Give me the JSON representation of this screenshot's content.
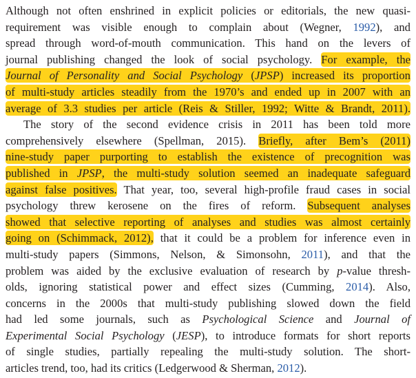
{
  "lines": [
    [
      "Although not often enshrined in explicit policies or editorials, the new quasi-"
    ],
    [
      "requirement was visible enough to complain about (Wegner, ",
      "1992",
      "), and"
    ],
    [
      "spread through word-of-mouth communication. This hand on the levers of"
    ],
    [
      "journal publishing changed the look of social psychology. ",
      "For example, the"
    ],
    [
      "Journal of Personality and Social Psychology",
      " (",
      "JPSP",
      ") increased its proportion"
    ],
    [
      "of multi-study articles steadily from the 1970’s and ended up in 2007 with an"
    ],
    [
      "average of 3.3 studies per article (Reis & Stiller, 1992; Witte & Brandt, 2011)."
    ],
    [
      "The story of the second evidence crisis in 2011 has been told more"
    ],
    [
      "comprehensively elsewhere (Spellman, 2015). ",
      "Briefly, after Bem’s (2011)"
    ],
    [
      "nine-study paper purporting to establish the existence of precognition was"
    ],
    [
      "published in ",
      "JPSP",
      ", the multi-study solution seemed an inadequate safeguard"
    ],
    [
      "against false positives.",
      " That year, too, several high-profile fraud cases in social"
    ],
    [
      "psychology threw kerosene on the fires of reform. ",
      "Subsequent analyses"
    ],
    [
      "showed that selective reporting of analyses and studies was almost certainly"
    ],
    [
      "going on (Schimmack, 2012),",
      " that it could be a problem for inference even in"
    ],
    [
      "multi-study papers (Simmons, Nelson, & Simonsohn, ",
      "2011",
      "), and that the"
    ],
    [
      "problem was aided by the exclusive evaluation of research by ",
      "p",
      "-value thresh-"
    ],
    [
      "olds, ignoring statistical power and effect sizes (Cumming, ",
      "2014",
      "). Also,"
    ],
    [
      "concerns in the 2000s that multi-study publishing slowed down the field"
    ],
    [
      "had led some journals, such as ",
      "Psychological Science",
      " and ",
      "Journal of"
    ],
    [
      "Experimental Social Psychology",
      " (",
      "JESP",
      "), to introduce formats for short reports"
    ],
    [
      "of single studies, partially repealing the multi-study solution. The short-"
    ],
    [
      "articles trend, too, had its critics (Ledgerwood & Sherman, ",
      "2012",
      ")."
    ]
  ]
}
